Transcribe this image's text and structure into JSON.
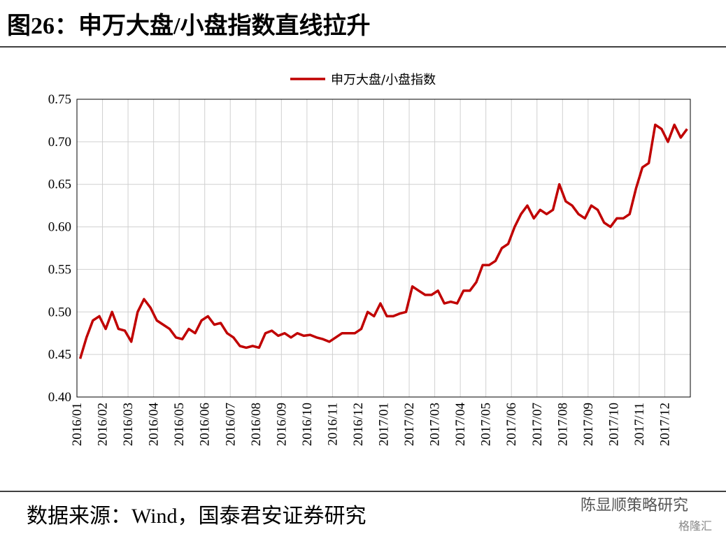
{
  "chart_data": {
    "type": "line",
    "title": "图26：申万大盘/小盘指数直线拉升",
    "source": "数据来源：Wind，国泰君安证券研究",
    "watermark": "陈显顺策略研究",
    "watermark_brand": "格隆汇",
    "categories": [
      "2016/01",
      null,
      null,
      null,
      "2016/02",
      null,
      null,
      null,
      "2016/03",
      null,
      null,
      null,
      "2016/04",
      null,
      null,
      null,
      "2016/05",
      null,
      null,
      null,
      "2016/06",
      null,
      null,
      null,
      "2016/07",
      null,
      null,
      null,
      "2016/08",
      null,
      null,
      null,
      "2016/09",
      null,
      null,
      null,
      "2016/10",
      null,
      null,
      null,
      "2016/11",
      null,
      null,
      null,
      "2016/12",
      null,
      null,
      null,
      "2017/01",
      null,
      null,
      null,
      "2017/02",
      null,
      null,
      null,
      "2017/03",
      null,
      null,
      null,
      "2017/04",
      null,
      null,
      null,
      "2017/05",
      null,
      null,
      null,
      "2017/06",
      null,
      null,
      null,
      "2017/07",
      null,
      null,
      null,
      "2017/08",
      null,
      null,
      null,
      "2017/09",
      null,
      null,
      null,
      "2017/10",
      null,
      null,
      null,
      "2017/11",
      null,
      null,
      null,
      "2017/12",
      null,
      null,
      null
    ],
    "series": [
      {
        "name": "申万大盘/小盘指数",
        "color": "#c00000",
        "values": [
          0.445,
          0.47,
          0.49,
          0.495,
          0.48,
          0.5,
          0.48,
          0.478,
          0.465,
          0.5,
          0.515,
          0.505,
          0.49,
          0.485,
          0.48,
          0.47,
          0.468,
          0.48,
          0.475,
          0.49,
          0.495,
          0.485,
          0.487,
          0.475,
          0.47,
          0.46,
          0.458,
          0.46,
          0.458,
          0.475,
          0.478,
          0.472,
          0.475,
          0.47,
          0.475,
          0.472,
          0.473,
          0.47,
          0.468,
          0.465,
          0.47,
          0.475,
          0.475,
          0.475,
          0.48,
          0.5,
          0.495,
          0.51,
          0.495,
          0.495,
          0.498,
          0.5,
          0.53,
          0.525,
          0.52,
          0.52,
          0.525,
          0.51,
          0.512,
          0.51,
          0.525,
          0.525,
          0.535,
          0.555,
          0.555,
          0.56,
          0.575,
          0.58,
          0.6,
          0.615,
          0.625,
          0.61,
          0.62,
          0.615,
          0.62,
          0.65,
          0.63,
          0.625,
          0.615,
          0.61,
          0.625,
          0.62,
          0.605,
          0.6,
          0.61,
          0.61,
          0.615,
          0.645,
          0.67,
          0.675,
          0.72,
          0.715,
          0.7,
          0.72,
          0.705,
          0.715
        ]
      }
    ],
    "ylim": [
      0.4,
      0.75
    ],
    "yticks": [
      {
        "value": 0.4,
        "label": "0.40"
      },
      0.45,
      {
        "value": 0.5,
        "label": "0.50"
      },
      0.55,
      {
        "value": 0.6,
        "label": "0.60"
      },
      0.65,
      {
        "value": 0.7,
        "label": "0.70"
      },
      0.75
    ],
    "grid": true,
    "legend": "top"
  }
}
